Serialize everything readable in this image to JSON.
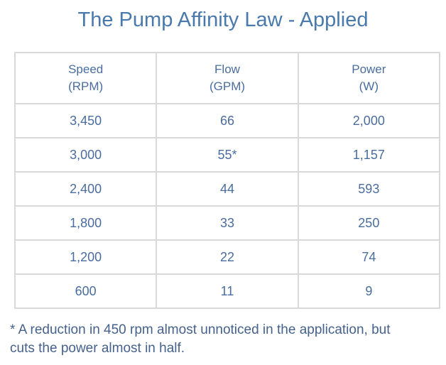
{
  "title": "The Pump Affinity Law - Applied",
  "table": {
    "headers": [
      {
        "label": "Speed",
        "unit": "(RPM)"
      },
      {
        "label": "Flow",
        "unit": "(GPM)"
      },
      {
        "label": "Power",
        "unit": "(W)"
      }
    ],
    "rows": [
      [
        "3,450",
        "66",
        "2,000"
      ],
      [
        "3,000",
        "55*",
        "1,157"
      ],
      [
        "2,400",
        "44",
        "593"
      ],
      [
        "1,800",
        "33",
        "250"
      ],
      [
        "1,200",
        "22",
        "74"
      ],
      [
        "600",
        "11",
        "9"
      ]
    ]
  },
  "footnote": {
    "lines": [
      "* A reduction in 450 rpm almost unnoticed in the application, but",
      "cuts the power almost in half."
    ],
    "text": "* A reduction in 450 rpm almost unnoticed in the application, but cuts the power almost in half."
  },
  "colors": {
    "title_text": "#4a79ab",
    "table_text": "#4a6d9e",
    "footnote_text": "#45618c",
    "border": "#d9d9d9",
    "background": "#ffffff"
  },
  "chart_data": {
    "type": "table",
    "title": "The Pump Affinity Law - Applied",
    "columns": [
      "Speed (RPM)",
      "Flow (GPM)",
      "Power (W)"
    ],
    "rows": [
      [
        3450,
        66,
        2000
      ],
      [
        3000,
        55,
        1157
      ],
      [
        2400,
        44,
        593
      ],
      [
        1800,
        33,
        250
      ],
      [
        1200,
        22,
        74
      ],
      [
        600,
        11,
        9
      ]
    ],
    "annotations": [
      "Flow value 55 is marked with an asterisk: 55*",
      "* A reduction in 450 rpm almost unnoticed in the application, but cuts the power almost in half."
    ]
  }
}
